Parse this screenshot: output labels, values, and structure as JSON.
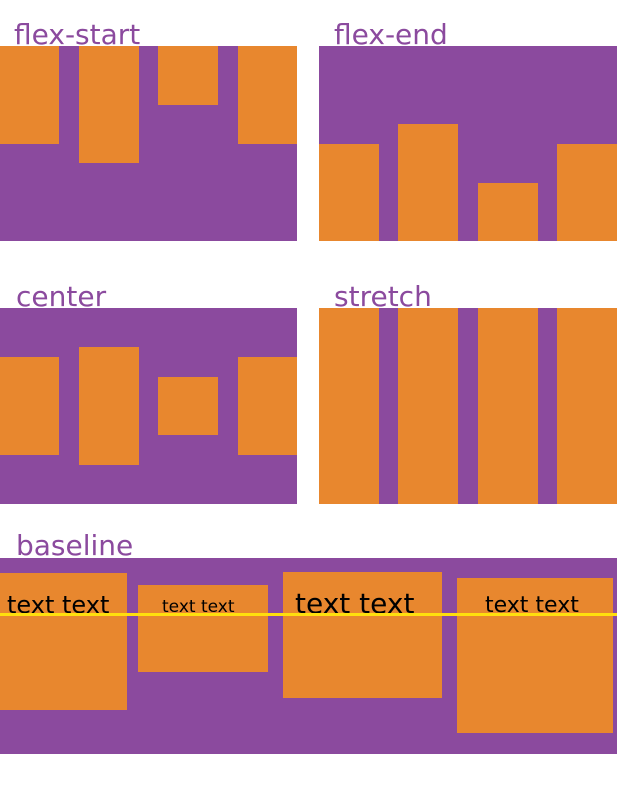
{
  "figure": {
    "sections": [
      {
        "label": "flex-start"
      },
      {
        "label": "flex-end"
      },
      {
        "label": "center"
      },
      {
        "label": "stretch"
      },
      {
        "label": "baseline"
      }
    ],
    "baseline_items": [
      {
        "label": "text text"
      },
      {
        "label": "text text"
      },
      {
        "label": "text text"
      },
      {
        "label": "text text"
      }
    ],
    "colors": {
      "container": "#8b4a9e",
      "item": "#e8872e",
      "baseline_line": "#ffdf0d",
      "label_text": "#8b4a9e",
      "item_text": "#000000",
      "background": "#ffffff"
    }
  }
}
